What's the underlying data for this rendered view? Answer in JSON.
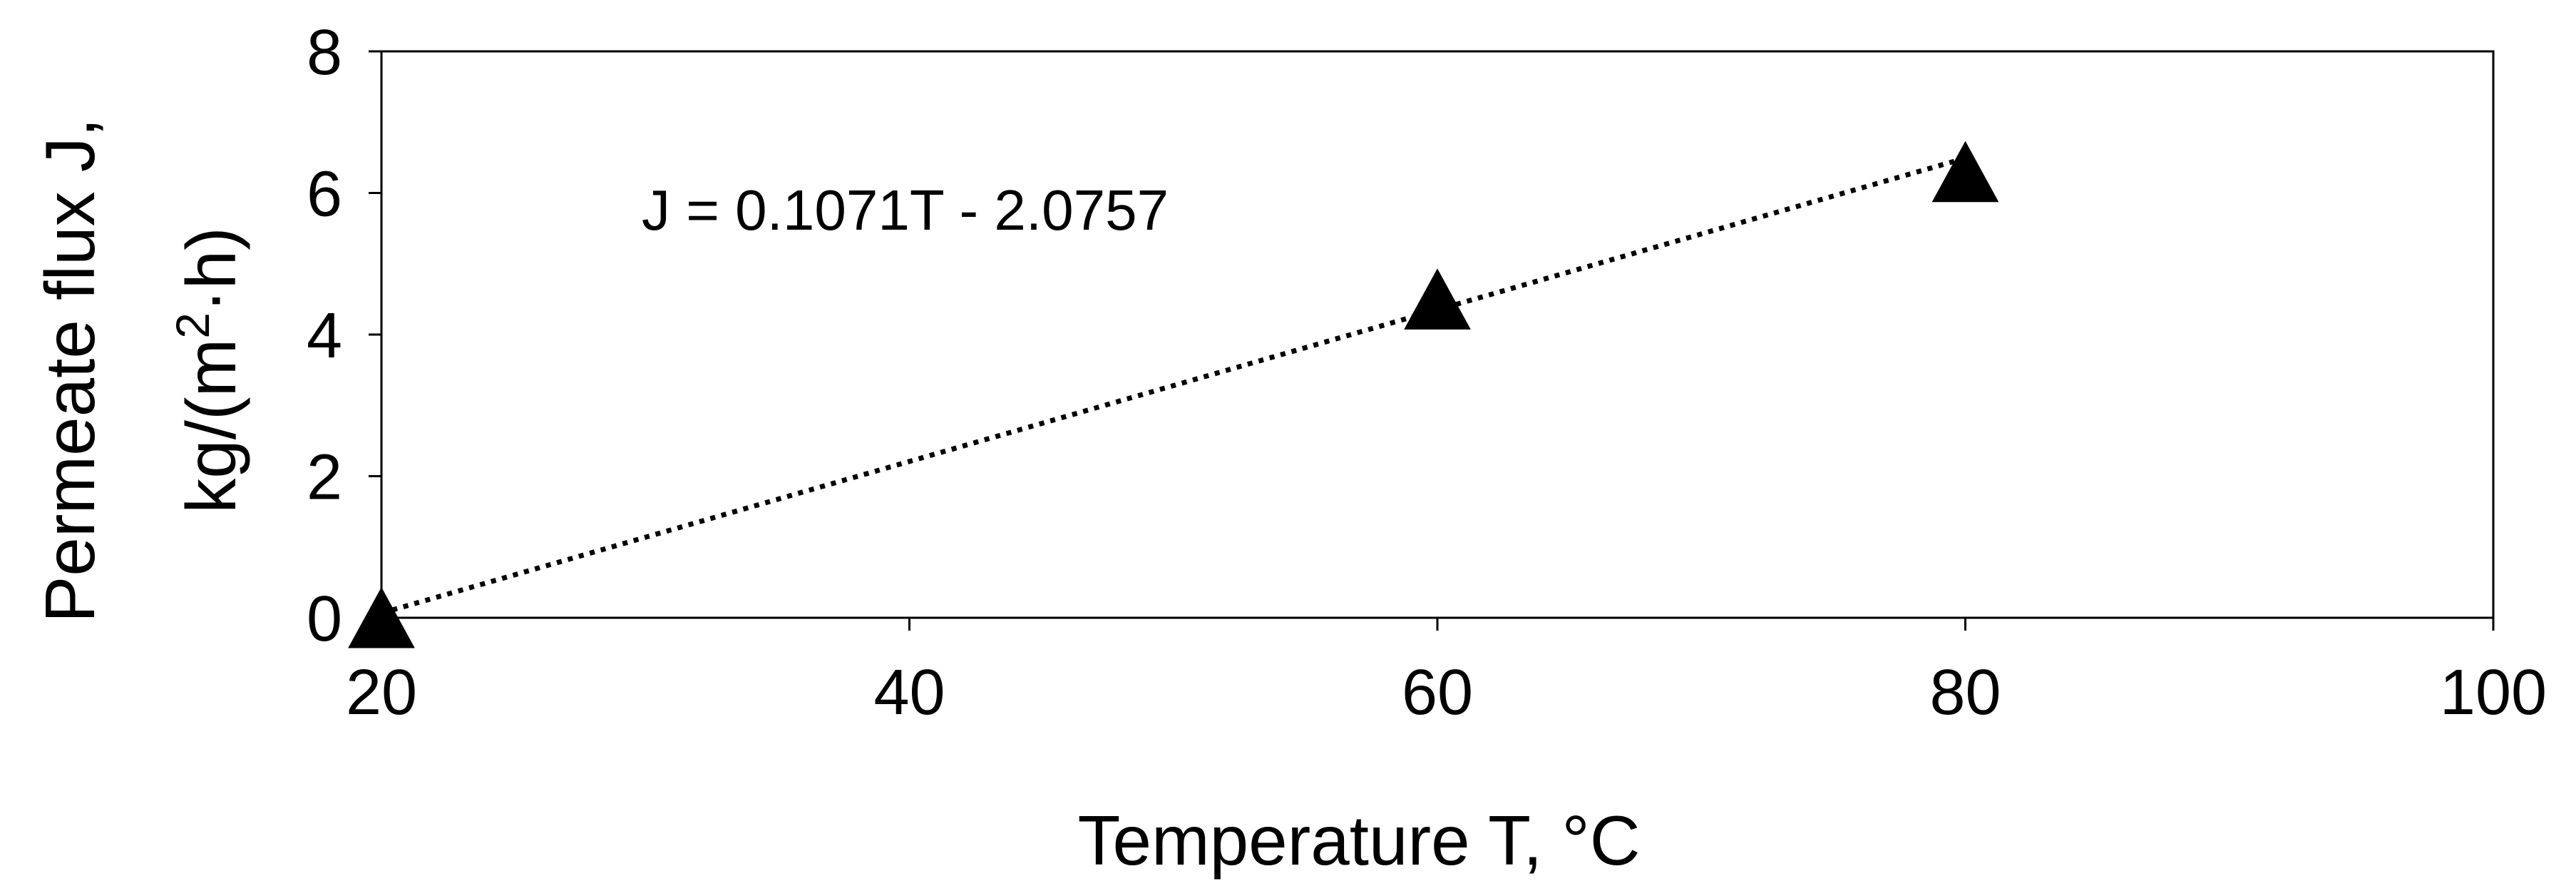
{
  "chart_data": {
    "type": "scatter",
    "title": "",
    "xlabel": "Temperature T, °C",
    "ylabel": {
      "line1": "Permeate flux J,",
      "line2_prefix": "kg/(m",
      "line2_sup": "2",
      "line2_suffix": "·h)"
    },
    "xlim": [
      20,
      100
    ],
    "ylim": [
      0,
      8
    ],
    "xticks": [
      20,
      40,
      60,
      80,
      100
    ],
    "yticks": [
      0,
      2,
      4,
      6,
      8
    ],
    "grid": false,
    "legend": "none",
    "series": [
      {
        "marker": "triangle",
        "color": "#000000",
        "points": [
          {
            "x": 20,
            "y": 0.0
          },
          {
            "x": 60,
            "y": 4.5
          },
          {
            "x": 80,
            "y": 6.3
          }
        ]
      }
    ],
    "trendline": {
      "style": "dotted",
      "color": "#000000",
      "slope": 0.1071,
      "intercept": -2.0757,
      "x_range": [
        20,
        80
      ],
      "equation_label": "J = 0.1071T - 2.0757"
    }
  }
}
